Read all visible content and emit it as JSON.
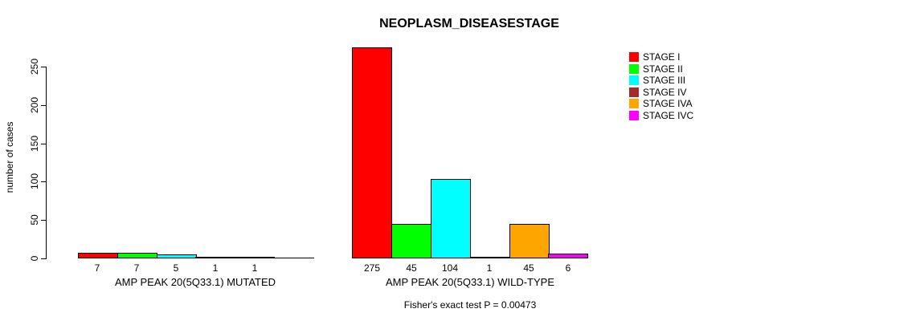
{
  "chart_data": {
    "type": "bar",
    "title": "NEOPLASM_DISEASESTAGE",
    "ylabel": "number of cases",
    "xlabel": "",
    "ylim": [
      0,
      275
    ],
    "yticks": [
      0,
      50,
      100,
      150,
      200,
      250
    ],
    "grid": false,
    "legend_position": "right",
    "categories": [
      "AMP PEAK 20(5Q33.1) MUTATED",
      "AMP PEAK 20(5Q33.1) WILD-TYPE"
    ],
    "series": [
      {
        "name": "STAGE I",
        "color": "#ff0000",
        "values": [
          7,
          275
        ]
      },
      {
        "name": "STAGE II",
        "color": "#00ff00",
        "values": [
          7,
          45
        ]
      },
      {
        "name": "STAGE III",
        "color": "#00ffff",
        "values": [
          5,
          104
        ]
      },
      {
        "name": "STAGE IV",
        "color": "#a52a2a",
        "values": [
          1,
          1
        ]
      },
      {
        "name": "STAGE IVA",
        "color": "#ffa500",
        "values": [
          1,
          45
        ]
      },
      {
        "name": "STAGE IVC",
        "color": "#ff00ff",
        "values": [
          0,
          6
        ]
      }
    ],
    "annotation": "Fisher's exact test P = 0.00473"
  }
}
